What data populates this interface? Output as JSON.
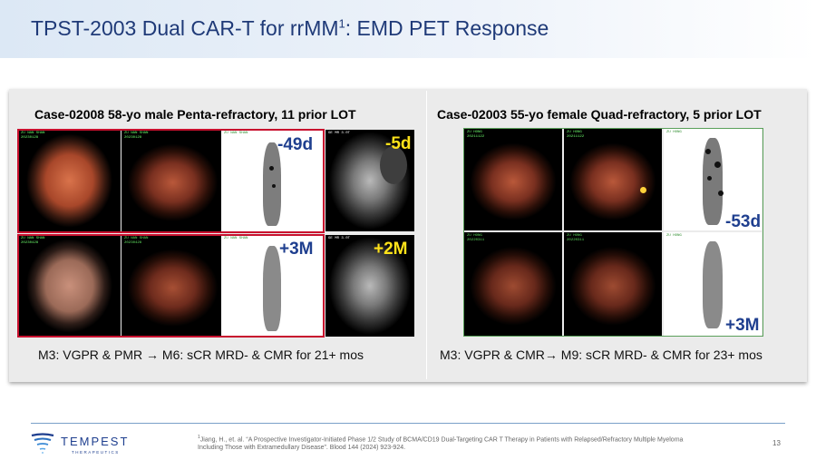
{
  "slide": {
    "title_main": "TPST-2003 Dual CAR-T for rrMM",
    "title_sup": "1",
    "title_rest": ": EMD PET Response",
    "page_number": "13"
  },
  "left_case": {
    "title": "Case-02008 58-yo male  Penta-refractory, 11 prior LOT",
    "tag_top": "-49d",
    "tag_bottom": "+3M",
    "tag_mri_top": "-5d",
    "tag_mri_bottom": "+2M",
    "caption": "M3: VGPR & PMR → M6: sCR MRD- & CMR for 21+ mos"
  },
  "right_case": {
    "title": "Case-02003 55-yo female  Quad-refractory, 5 prior LOT",
    "tag_top": "-53d",
    "tag_bottom": "+3M",
    "caption": "M3: VGPR & CMR→ M9: sCR MRD- & CMR for 23+ mos"
  },
  "footer": {
    "logo_name": "TEMPEST",
    "logo_sub": "THERAPEUTICS",
    "footnote_sup": "1",
    "footnote_text": "Jiang, H., et. al. “A Prospective Investigator-Initiated Phase 1/2 Study of BCMA/CD19 Dual-Targeting CAR T Therapy in Patients with Relapsed/Refractory Multiple Myeloma Including Those with Extramedullary Disease”. Blood 144 (2024) 923-924."
  },
  "colors": {
    "title_blue": "#1f3a78",
    "tag_blue": "#1f3f8f",
    "tag_yellow": "#ffe21a",
    "highlight_red": "#c8102e"
  }
}
